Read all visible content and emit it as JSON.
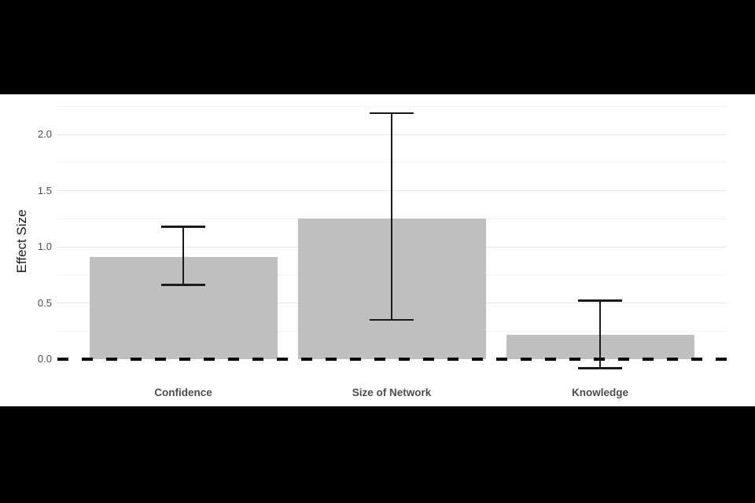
{
  "figure": {
    "background": "#ffffff",
    "letterbox_color": "#000000"
  },
  "chart_data": {
    "type": "bar",
    "title": "",
    "xlabel": "",
    "ylabel": "Effect Size",
    "categories": [
      "Confidence",
      "Size of Network",
      "Knowledge"
    ],
    "values": [
      0.91,
      1.25,
      0.22
    ],
    "error_bars": [
      {
        "low": 0.66,
        "high": 1.18
      },
      {
        "low": 0.35,
        "high": 2.19
      },
      {
        "low": -0.08,
        "high": 0.52
      }
    ],
    "y_ticks": [
      0.0,
      0.5,
      1.0,
      1.5,
      2.0
    ],
    "y_tick_labels": [
      "0.0",
      "0.5",
      "1.0",
      "1.5",
      "2.0"
    ],
    "ylim": [
      -0.09,
      2.32
    ],
    "grid": {
      "orientation": "horizontal",
      "major_step": 0.5,
      "minor_step": 0.25
    },
    "legend": "none",
    "zero_line": {
      "style": "dashed",
      "value": 0.0
    },
    "colors": {
      "bar_fill": "#bfbfbf",
      "grid_major": "#e4e4e4",
      "grid_minor": "#f1f1f1",
      "error_bar": "#1a1a1a",
      "zero_line": "#000000",
      "tick_label": "#4d4d4d",
      "category_label": "#4d4d4d",
      "axis_title": "#1a1a1a",
      "panel_background": "#ffffff"
    }
  }
}
